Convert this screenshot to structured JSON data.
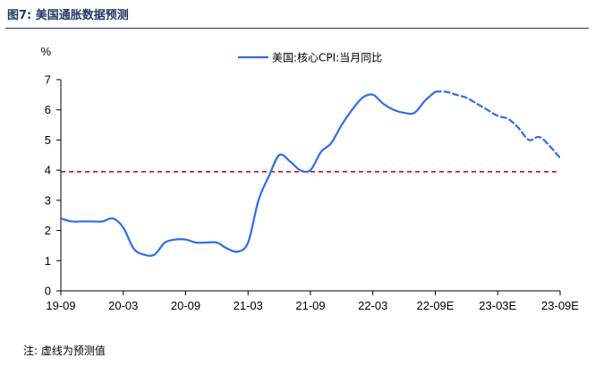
{
  "header": {
    "title": "图7:  美国通胀数据预测"
  },
  "footer": {
    "note": "注:  虚线为预测值"
  },
  "colors": {
    "series": "#2e6de6",
    "reference": "#c00000",
    "title": "#1f3864"
  },
  "chart_data": {
    "type": "line",
    "title": "",
    "ylabel": "%",
    "xlabel": "",
    "ylim": [
      0,
      7
    ],
    "y_ticks": [
      0,
      1,
      2,
      3,
      4,
      5,
      6,
      7
    ],
    "x_tick_labels": [
      "19-09",
      "20-03",
      "20-09",
      "21-03",
      "21-09",
      "22-03",
      "22-09E",
      "23-03E",
      "23-09E"
    ],
    "legend": {
      "position": "top-right",
      "entries": [
        "美国:核心CPI:当月同比"
      ]
    },
    "grid": false,
    "reference_line": {
      "value": 3.95,
      "style": "dashed",
      "color": "#c00000"
    },
    "series": [
      {
        "name": "美国:核心CPI:当月同比",
        "x": [
          "2019-09",
          "2019-10",
          "2019-11",
          "2019-12",
          "2020-01",
          "2020-02",
          "2020-03",
          "2020-04",
          "2020-05",
          "2020-06",
          "2020-07",
          "2020-08",
          "2020-09",
          "2020-10",
          "2020-11",
          "2020-12",
          "2021-01",
          "2021-02",
          "2021-03",
          "2021-04",
          "2021-05",
          "2021-06",
          "2021-07",
          "2021-08",
          "2021-09",
          "2021-10",
          "2021-11",
          "2021-12",
          "2022-01",
          "2022-02",
          "2022-03",
          "2022-04",
          "2022-05",
          "2022-06",
          "2022-07",
          "2022-08",
          "2022-09"
        ],
        "values": [
          2.4,
          2.3,
          2.3,
          2.3,
          2.3,
          2.4,
          2.1,
          1.4,
          1.2,
          1.2,
          1.6,
          1.7,
          1.7,
          1.6,
          1.6,
          1.6,
          1.4,
          1.3,
          1.6,
          3.0,
          3.8,
          4.5,
          4.3,
          4.0,
          4.0,
          4.6,
          4.9,
          5.5,
          6.0,
          6.4,
          6.5,
          6.2,
          6.0,
          5.9,
          5.9,
          6.3,
          6.6
        ]
      },
      {
        "name": "美国:核心CPI:当月同比",
        "forecast": true,
        "x": [
          "2022-09",
          "2022-10",
          "2022-11",
          "2022-12",
          "2023-01",
          "2023-02",
          "2023-03",
          "2023-04",
          "2023-05",
          "2023-06",
          "2023-07",
          "2023-08",
          "2023-09"
        ],
        "values": [
          6.6,
          6.6,
          6.5,
          6.4,
          6.2,
          6.0,
          5.8,
          5.7,
          5.4,
          5.0,
          5.1,
          4.8,
          4.4
        ]
      }
    ]
  }
}
